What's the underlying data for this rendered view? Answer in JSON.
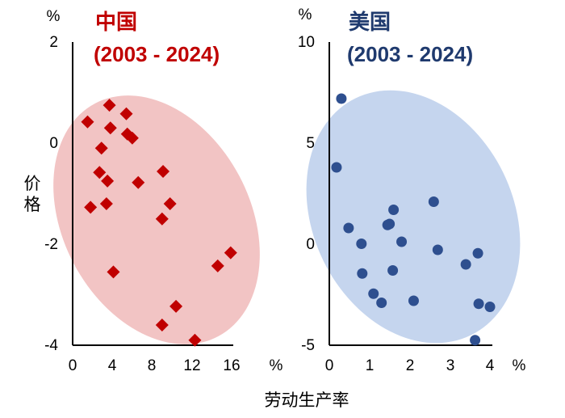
{
  "shared": {
    "ylabel": "价格",
    "xlabel": "劳动生产率"
  },
  "chart_data": [
    {
      "type": "scatter",
      "title": "中国",
      "subtitle": "(2003 - 2024)",
      "y_unit": "%",
      "x_unit": "%",
      "xlim": [
        0,
        16
      ],
      "ylim": [
        -4,
        2
      ],
      "x_ticks": [
        "0",
        "4",
        "8",
        "12",
        "16"
      ],
      "y_ticks": [
        "2",
        "0",
        "-2",
        "-4"
      ],
      "marker": "diamond",
      "color": "#c00000",
      "ellipse_color": "#f2c4c4",
      "points": [
        {
          "x": 1.5,
          "y": 0.42
        },
        {
          "x": 3.7,
          "y": 0.75
        },
        {
          "x": 5.4,
          "y": 0.58
        },
        {
          "x": 3.8,
          "y": 0.3
        },
        {
          "x": 5.5,
          "y": 0.18
        },
        {
          "x": 6.0,
          "y": 0.1
        },
        {
          "x": 2.9,
          "y": -0.1
        },
        {
          "x": 2.7,
          "y": -0.58
        },
        {
          "x": 3.5,
          "y": -0.75
        },
        {
          "x": 6.6,
          "y": -0.78
        },
        {
          "x": 9.1,
          "y": -0.56
        },
        {
          "x": 1.8,
          "y": -1.27
        },
        {
          "x": 3.4,
          "y": -1.2
        },
        {
          "x": 9.8,
          "y": -1.2
        },
        {
          "x": 9.0,
          "y": -1.5
        },
        {
          "x": 4.1,
          "y": -2.55
        },
        {
          "x": 14.6,
          "y": -2.43
        },
        {
          "x": 15.9,
          "y": -2.17
        },
        {
          "x": 10.4,
          "y": -3.23
        },
        {
          "x": 9.0,
          "y": -3.6
        },
        {
          "x": 12.3,
          "y": -3.9
        }
      ]
    },
    {
      "type": "scatter",
      "title": "美国",
      "subtitle": "(2003 - 2024)",
      "y_unit": "%",
      "x_unit": "%",
      "xlim": [
        0,
        4
      ],
      "ylim": [
        -5,
        10
      ],
      "x_ticks": [
        "0",
        "1",
        "2",
        "3",
        "4"
      ],
      "y_ticks": [
        "10",
        "5",
        "0",
        "-5"
      ],
      "marker": "circle",
      "color": "#2e4f8f",
      "ellipse_color": "#c5d5ee",
      "points": [
        {
          "x": 0.3,
          "y": 7.2
        },
        {
          "x": 0.18,
          "y": 3.8
        },
        {
          "x": 0.48,
          "y": 0.8
        },
        {
          "x": 0.8,
          "y": 0.02
        },
        {
          "x": 1.45,
          "y": 0.95
        },
        {
          "x": 1.5,
          "y": 1.0
        },
        {
          "x": 1.6,
          "y": 1.7
        },
        {
          "x": 1.8,
          "y": 0.12
        },
        {
          "x": 2.6,
          "y": 2.1
        },
        {
          "x": 2.7,
          "y": -0.28
        },
        {
          "x": 0.82,
          "y": -1.45
        },
        {
          "x": 1.58,
          "y": -1.3
        },
        {
          "x": 1.1,
          "y": -2.45
        },
        {
          "x": 1.3,
          "y": -2.9
        },
        {
          "x": 2.1,
          "y": -2.8
        },
        {
          "x": 3.4,
          "y": -1.0
        },
        {
          "x": 3.7,
          "y": -0.45
        },
        {
          "x": 3.72,
          "y": -2.95
        },
        {
          "x": 4.0,
          "y": -3.1
        },
        {
          "x": 3.63,
          "y": -4.75
        }
      ]
    }
  ]
}
